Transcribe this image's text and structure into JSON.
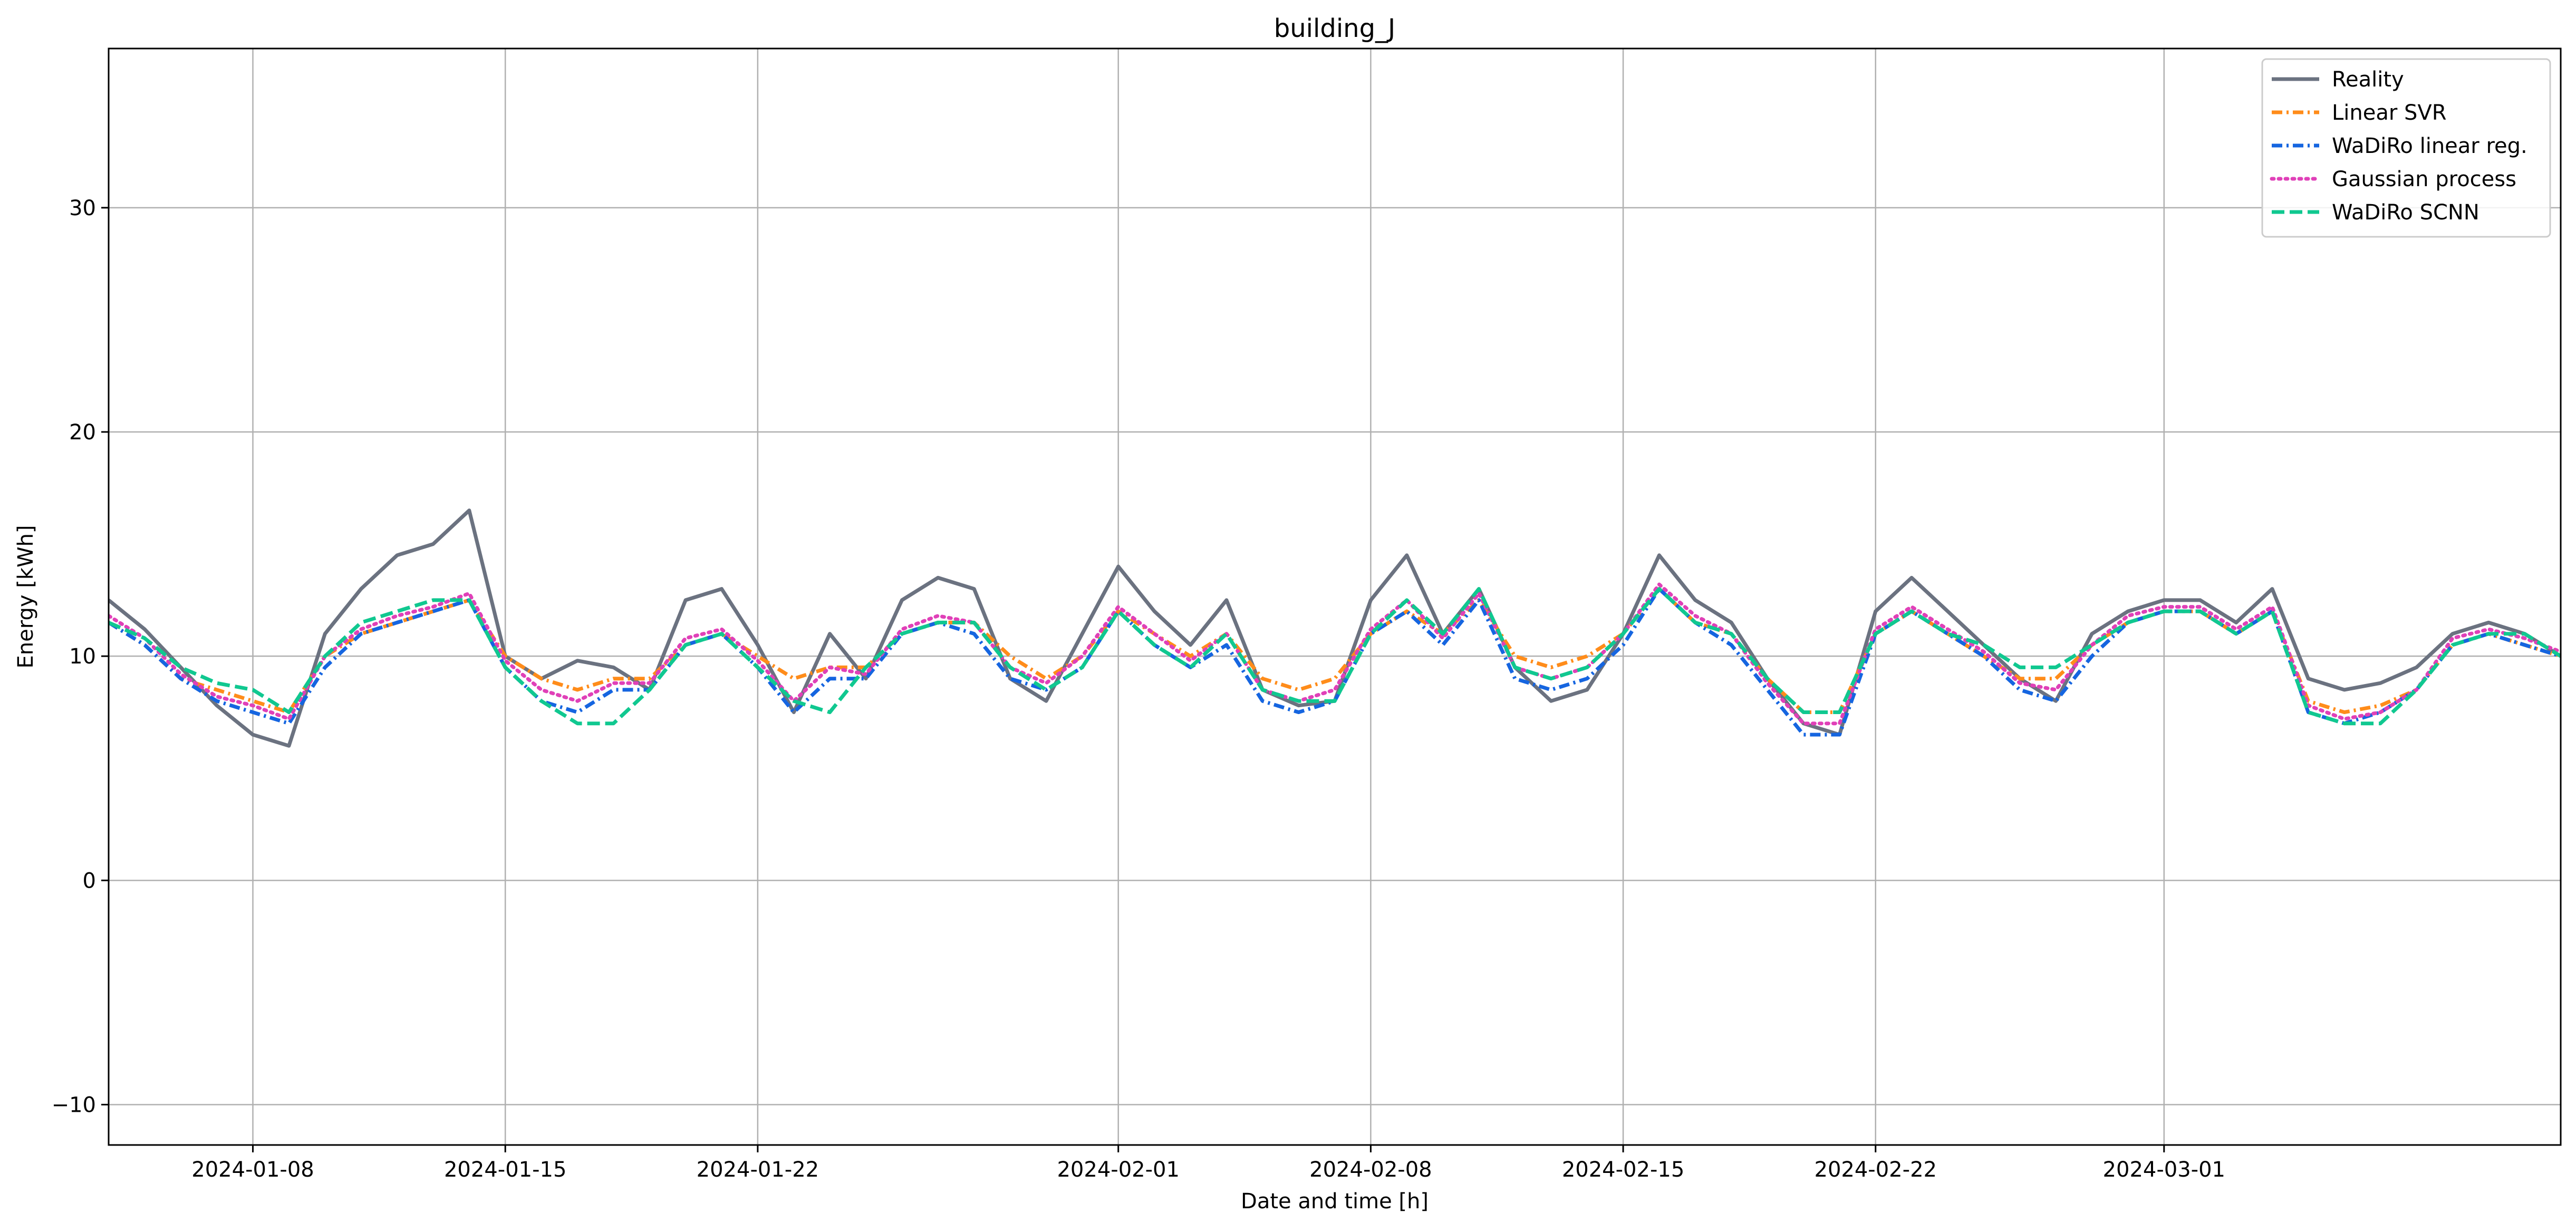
{
  "chart_data": {
    "type": "line",
    "title": "building_J",
    "xlabel": "Date and time [h]",
    "ylabel": "Energy [kWh]",
    "x_axis_type": "date",
    "xlim": [
      "2024-01-04",
      "2024-03-12"
    ],
    "ylim": [
      -11.8,
      37.1
    ],
    "x_ticks": [
      "2024-01-08",
      "2024-01-15",
      "2024-01-22",
      "2024-02-01",
      "2024-02-08",
      "2024-02-15",
      "2024-02-22",
      "2024-03-01"
    ],
    "y_ticks": [
      -10,
      0,
      10,
      20,
      30
    ],
    "grid": true,
    "legend_position": "top-right",
    "sampling": "daily averages read from the plot (hourly series not recoverable)",
    "x": [
      "2024-01-04",
      "2024-01-05",
      "2024-01-06",
      "2024-01-07",
      "2024-01-08",
      "2024-01-09",
      "2024-01-10",
      "2024-01-11",
      "2024-01-12",
      "2024-01-13",
      "2024-01-14",
      "2024-01-15",
      "2024-01-16",
      "2024-01-17",
      "2024-01-18",
      "2024-01-19",
      "2024-01-20",
      "2024-01-21",
      "2024-01-22",
      "2024-01-23",
      "2024-01-24",
      "2024-01-25",
      "2024-01-26",
      "2024-01-27",
      "2024-01-28",
      "2024-01-29",
      "2024-01-30",
      "2024-01-31",
      "2024-02-01",
      "2024-02-02",
      "2024-02-03",
      "2024-02-04",
      "2024-02-05",
      "2024-02-06",
      "2024-02-07",
      "2024-02-08",
      "2024-02-09",
      "2024-02-10",
      "2024-02-11",
      "2024-02-12",
      "2024-02-13",
      "2024-02-14",
      "2024-02-15",
      "2024-02-16",
      "2024-02-17",
      "2024-02-18",
      "2024-02-19",
      "2024-02-20",
      "2024-02-21",
      "2024-02-22",
      "2024-02-23",
      "2024-02-24",
      "2024-02-25",
      "2024-02-26",
      "2024-02-27",
      "2024-02-28",
      "2024-02-29",
      "2024-03-01",
      "2024-03-02",
      "2024-03-03",
      "2024-03-04",
      "2024-03-05",
      "2024-03-06",
      "2024-03-07",
      "2024-03-08",
      "2024-03-09",
      "2024-03-10",
      "2024-03-11",
      "2024-03-12"
    ],
    "series": [
      {
        "name": "Reality",
        "color": "#6b7280",
        "dash": "solid",
        "values": [
          12.5,
          11.2,
          9.5,
          7.8,
          6.5,
          6.0,
          11.0,
          13.0,
          14.5,
          15.0,
          16.5,
          10.0,
          9.0,
          9.8,
          9.5,
          8.5,
          12.5,
          13.0,
          10.5,
          7.5,
          11.0,
          9.0,
          12.5,
          13.5,
          13.0,
          9.0,
          8.0,
          11.0,
          14.0,
          12.0,
          10.5,
          12.5,
          8.5,
          7.8,
          8.0,
          12.5,
          14.5,
          11.0,
          13.0,
          9.5,
          8.0,
          8.5,
          11.0,
          14.5,
          12.5,
          11.5,
          9.0,
          7.0,
          6.5,
          12.0,
          13.5,
          12.0,
          10.5,
          9.0,
          8.0,
          11.0,
          12.0,
          12.5,
          12.5,
          11.5,
          13.0,
          9.0,
          8.5,
          8.8,
          9.5,
          11.0,
          11.5,
          11.0,
          10.0
        ]
      },
      {
        "name": "Linear SVR",
        "color": "#ff8c1a",
        "dash": "dashdot",
        "values": [
          11.5,
          10.5,
          9.0,
          8.5,
          8.0,
          7.5,
          10.0,
          11.0,
          11.5,
          12.0,
          12.5,
          10.0,
          9.0,
          8.5,
          9.0,
          9.0,
          10.5,
          11.0,
          10.0,
          9.0,
          9.5,
          9.5,
          11.0,
          11.5,
          11.5,
          10.0,
          9.0,
          10.0,
          12.0,
          11.0,
          10.0,
          11.0,
          9.0,
          8.5,
          9.0,
          11.0,
          12.0,
          11.0,
          12.5,
          10.0,
          9.5,
          10.0,
          11.0,
          13.0,
          11.5,
          11.0,
          9.0,
          7.5,
          7.5,
          11.0,
          12.0,
          11.0,
          10.0,
          9.0,
          9.0,
          10.5,
          11.5,
          12.0,
          12.0,
          11.0,
          12.0,
          8.0,
          7.5,
          7.8,
          8.5,
          10.5,
          11.0,
          10.5,
          10.0
        ]
      },
      {
        "name": "WaDiRo linear reg.",
        "color": "#1565e0",
        "dash": "dashdot",
        "values": [
          11.5,
          10.5,
          9.0,
          8.0,
          7.5,
          7.0,
          9.5,
          11.0,
          11.5,
          12.0,
          12.5,
          9.5,
          8.0,
          7.5,
          8.5,
          8.5,
          10.5,
          11.0,
          9.5,
          7.5,
          9.0,
          9.0,
          11.0,
          11.5,
          11.0,
          9.0,
          8.5,
          9.5,
          12.0,
          10.5,
          9.5,
          10.5,
          8.0,
          7.5,
          8.0,
          11.0,
          12.0,
          10.5,
          12.5,
          9.0,
          8.5,
          9.0,
          10.5,
          13.0,
          11.5,
          10.5,
          8.5,
          6.5,
          6.5,
          11.0,
          12.0,
          11.0,
          10.0,
          8.5,
          8.0,
          10.0,
          11.5,
          12.0,
          12.0,
          11.0,
          12.0,
          7.5,
          7.0,
          7.5,
          8.5,
          10.5,
          11.0,
          10.5,
          10.0
        ]
      },
      {
        "name": "Gaussian process",
        "color": "#e040b8",
        "dash": "dotted",
        "values": [
          11.8,
          10.8,
          9.2,
          8.2,
          7.8,
          7.2,
          10.0,
          11.2,
          11.8,
          12.2,
          12.8,
          9.8,
          8.5,
          8.0,
          8.8,
          8.8,
          10.8,
          11.2,
          9.8,
          8.0,
          9.5,
          9.2,
          11.2,
          11.8,
          11.5,
          9.5,
          8.8,
          10.0,
          12.2,
          11.0,
          9.8,
          11.0,
          8.5,
          8.0,
          8.5,
          11.2,
          12.5,
          10.8,
          12.8,
          9.5,
          9.0,
          9.5,
          11.0,
          13.2,
          11.8,
          11.0,
          8.8,
          7.0,
          7.0,
          11.2,
          12.2,
          11.2,
          10.2,
          8.8,
          8.5,
          10.5,
          11.8,
          12.2,
          12.2,
          11.2,
          12.2,
          7.8,
          7.2,
          7.5,
          8.5,
          10.8,
          11.2,
          10.8,
          10.2
        ]
      },
      {
        "name": "WaDiRo SCNN",
        "color": "#10c890",
        "dash": "dashed",
        "values": [
          11.5,
          10.8,
          9.5,
          8.8,
          8.5,
          7.5,
          10.0,
          11.5,
          12.0,
          12.5,
          12.5,
          9.5,
          8.0,
          7.0,
          7.0,
          8.5,
          10.5,
          11.0,
          9.5,
          8.0,
          7.5,
          9.5,
          11.0,
          11.5,
          11.5,
          9.5,
          8.5,
          9.5,
          12.0,
          10.5,
          9.5,
          11.0,
          8.5,
          8.0,
          8.0,
          11.0,
          12.5,
          11.0,
          13.0,
          9.5,
          9.0,
          9.5,
          11.0,
          13.0,
          11.5,
          11.0,
          9.0,
          7.5,
          7.5,
          11.0,
          12.0,
          11.0,
          10.5,
          9.5,
          9.5,
          10.5,
          11.5,
          12.0,
          12.0,
          11.0,
          12.0,
          7.5,
          7.0,
          7.0,
          8.5,
          10.5,
          11.0,
          11.0,
          10.0
        ]
      }
    ]
  }
}
